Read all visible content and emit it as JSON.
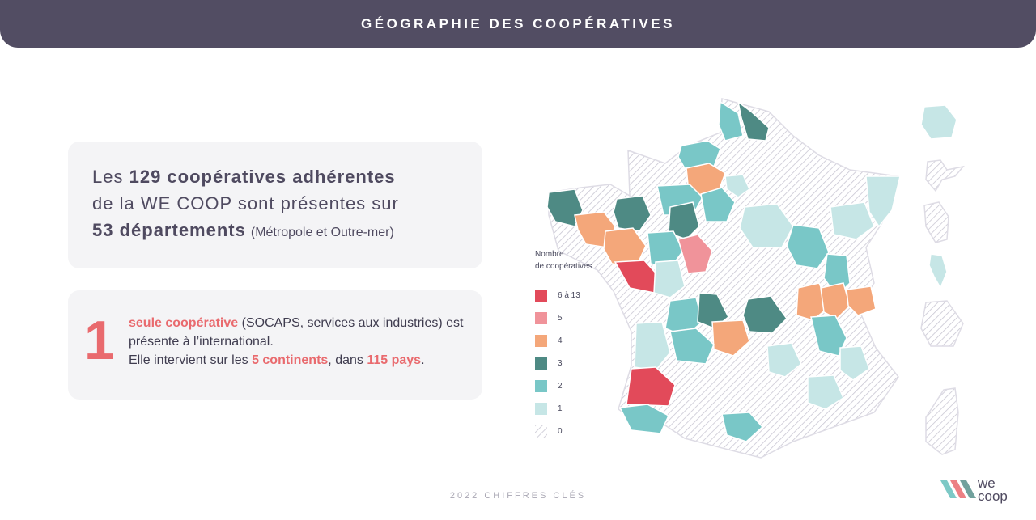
{
  "header": {
    "title": "GÉOGRAPHIE DES COOPÉRATIVES"
  },
  "summary": {
    "line1_prefix": "Les",
    "line1_bold": "129 coopératives adhérentes",
    "line2": "de la WE COOP sont présentes sur",
    "line3_bold": "53 départements",
    "line3_note": "(Métropole et Outre-mer)"
  },
  "international": {
    "big_number": "1",
    "highlight": "seule coopérative",
    "text1": " (SOCAPS, services aux industries) est présente à l’international.",
    "text2": "Elle intervient sur les ",
    "continents": "5 continents",
    "text3": ", dans ",
    "countries": "115 pays",
    "text4": "."
  },
  "legend": {
    "title_line1": "Nombre",
    "title_line2": "de coopératives",
    "items": [
      {
        "label": "6 à 13",
        "color": "#e24a5a"
      },
      {
        "label": "5",
        "color": "#f0939a"
      },
      {
        "label": "4",
        "color": "#f4a77a"
      },
      {
        "label": "3",
        "color": "#4e8a84"
      },
      {
        "label": "2",
        "color": "#79c7c7"
      },
      {
        "label": "1",
        "color": "#c6e6e6"
      },
      {
        "label": "0",
        "color": "hatched"
      }
    ]
  },
  "footer": {
    "text": "2022 CHIFFRES CLÉS"
  },
  "logo": {
    "line1": "we",
    "line2": "coop"
  }
}
